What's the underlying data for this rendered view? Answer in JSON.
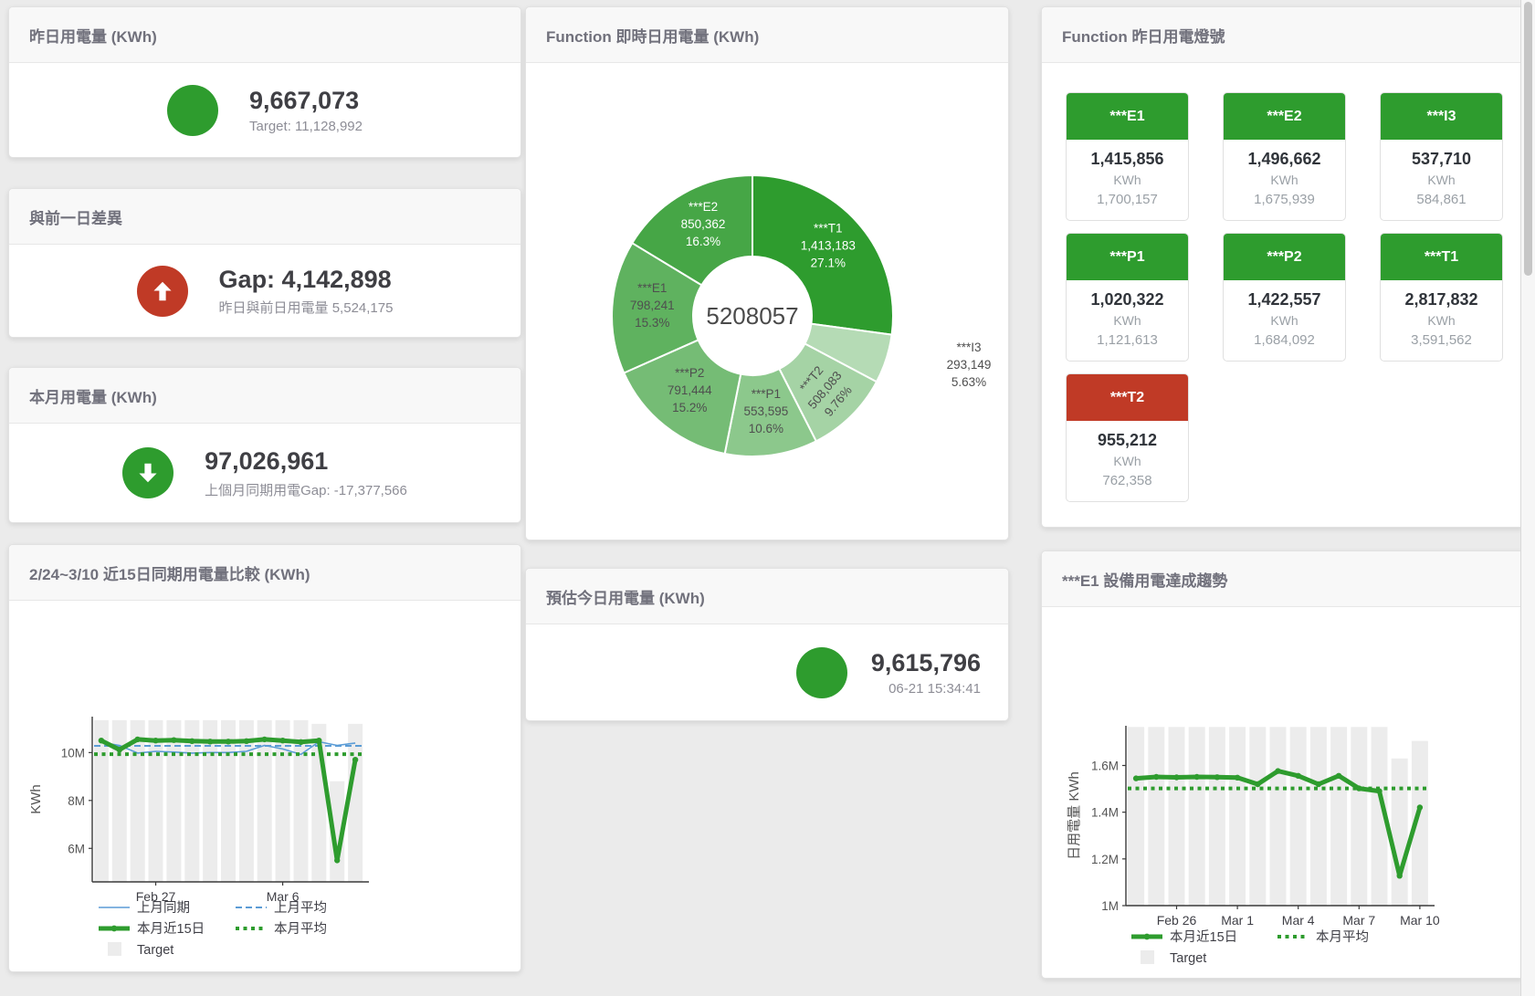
{
  "cards": {
    "yesterday": {
      "title": "昨日用電量 (KWh)",
      "value": "9,667,073",
      "subtitle": "Target: 11,128,992",
      "indicator": "circle",
      "indicator_color": "#2e9c2e"
    },
    "gap": {
      "title": "與前一日差異",
      "value": "Gap: 4,142,898",
      "subtitle": "昨日與前日用電量 5,524,175",
      "indicator": "arrow-up",
      "indicator_color": "#c03a26"
    },
    "month": {
      "title": "本月用電量 (KWh)",
      "value": "97,026,961",
      "subtitle": "上個月同期用電Gap: -17,377,566",
      "indicator": "arrow-down",
      "indicator_color": "#2e9c2e"
    },
    "today_estimate": {
      "title": "預估今日用電量 (KWh)",
      "value": "9,615,796",
      "subtitle": "06-21 15:34:41",
      "indicator": "circle",
      "indicator_color": "#2e9c2e"
    },
    "realtime_donut": {
      "title": "Function 即時日用電量 (KWh)"
    },
    "lights": {
      "title": "Function 昨日用電燈號",
      "unit": "KWh",
      "tiles": [
        {
          "name": "***E1",
          "value": "1,415,856",
          "target": "1,700,157",
          "status_color": "#2e9c2e"
        },
        {
          "name": "***E2",
          "value": "1,496,662",
          "target": "1,675,939",
          "status_color": "#2e9c2e"
        },
        {
          "name": "***I3",
          "value": "537,710",
          "target": "584,861",
          "status_color": "#2e9c2e"
        },
        {
          "name": "***P1",
          "value": "1,020,322",
          "target": "1,121,613",
          "status_color": "#2e9c2e"
        },
        {
          "name": "***P2",
          "value": "1,422,557",
          "target": "1,684,092",
          "status_color": "#2e9c2e"
        },
        {
          "name": "***T1",
          "value": "2,817,832",
          "target": "3,591,562",
          "status_color": "#2e9c2e"
        },
        {
          "name": "***T2",
          "value": "955,212",
          "target": "762,358",
          "status_color": "#c03a26"
        }
      ]
    },
    "compare_chart": {
      "title": "2/24~3/10 近15日同期用電量比較 (KWh)"
    },
    "e1_chart": {
      "title": "***E1 設備用電達成趨勢"
    }
  },
  "chart_data": [
    {
      "type": "pie",
      "title": "Function 即時日用電量 (KWh)",
      "center_total": "5208057",
      "slices": [
        {
          "name": "***T1",
          "value": 1413183,
          "pct_label": "27.1%",
          "color": "#2e9c2e",
          "text": "#ffffff"
        },
        {
          "name": "***I3",
          "value": 293149,
          "pct_label": "5.63%",
          "color": "#b5dbb5",
          "text": "#4f4f4f",
          "label_outside": true
        },
        {
          "name": "***T2",
          "value": 508083,
          "pct_label": "9.76%",
          "color": "#a5d3a5",
          "text": "#4f4f4f",
          "label_rotate": -50
        },
        {
          "name": "***P1",
          "value": 553595,
          "pct_label": "10.6%",
          "color": "#8cc88c",
          "text": "#4f4f4f"
        },
        {
          "name": "***P2",
          "value": 791444,
          "pct_label": "15.2%",
          "color": "#75bc75",
          "text": "#4f4f4f"
        },
        {
          "name": "***E1",
          "value": 798241,
          "pct_label": "15.3%",
          "color": "#5fb25f",
          "text": "#4f4f4f"
        },
        {
          "name": "***E2",
          "value": 850362,
          "pct_label": "16.3%",
          "color": "#46a646",
          "text": "#ffffff"
        }
      ]
    },
    {
      "type": "line",
      "title": "2/24~3/10 近15日同期用電量比較 (KWh)",
      "x_range": "2/24~3/10",
      "n_points": 15,
      "ylabel": "KWh",
      "ylim": [
        4600000,
        11500000
      ],
      "yticks": [
        {
          "v": 6000000,
          "label": "6M"
        },
        {
          "v": 8000000,
          "label": "8M"
        },
        {
          "v": 10000000,
          "label": "10M"
        }
      ],
      "x_labels": [
        {
          "index": 3,
          "label": "Feb 27"
        },
        {
          "index": 10,
          "label": "Mar 6"
        }
      ],
      "target_bars": {
        "name": "Target",
        "color": "#ececec",
        "values": [
          11350000,
          11350000,
          11350000,
          11350000,
          11350000,
          11350000,
          11350000,
          11350000,
          11350000,
          11350000,
          11350000,
          11350000,
          11200000,
          8800000,
          11200000
        ]
      },
      "series": [
        {
          "name": "上月同期",
          "color": "#5b9cd6",
          "width": 1.6,
          "dash": "solid",
          "values": [
            10420000,
            10300000,
            9980000,
            10050000,
            10020000,
            9980000,
            10000000,
            10000000,
            10050000,
            10300000,
            10150000,
            9920000,
            10450000,
            10300000,
            10400000
          ]
        },
        {
          "name": "上月平均",
          "color": "#5b9cd6",
          "width": 2,
          "dash": "dashed",
          "avg": 10280000
        },
        {
          "name": "本月近15日",
          "color": "#2e9c2e",
          "width": 5,
          "dash": "solid",
          "markers": true,
          "values": [
            10500000,
            10120000,
            10550000,
            10500000,
            10520000,
            10480000,
            10460000,
            10460000,
            10480000,
            10550000,
            10500000,
            10440000,
            10500000,
            5500000,
            9700000
          ]
        },
        {
          "name": "本月平均",
          "color": "#2e9c2e",
          "width": 4,
          "dash": "dotted",
          "avg": 9930000
        }
      ],
      "legend_rows": [
        [
          "上月同期",
          "上月平均"
        ],
        [
          "本月近15日",
          "本月平均"
        ],
        [
          "Target"
        ]
      ]
    },
    {
      "type": "line",
      "title": "***E1 設備用電達成趨勢",
      "n_points": 15,
      "ylabel": "日用電量 KWh",
      "ylim": [
        1000000,
        1770000
      ],
      "yticks": [
        {
          "v": 1000000,
          "label": "1M"
        },
        {
          "v": 1200000,
          "label": "1.2M"
        },
        {
          "v": 1400000,
          "label": "1.4M"
        },
        {
          "v": 1600000,
          "label": "1.6M"
        }
      ],
      "x_labels": [
        {
          "index": 2,
          "label": "Feb 26"
        },
        {
          "index": 5,
          "label": "Mar 1"
        },
        {
          "index": 8,
          "label": "Mar 4"
        },
        {
          "index": 11,
          "label": "Mar 7"
        },
        {
          "index": 14,
          "label": "Mar 10"
        }
      ],
      "target_bars": {
        "name": "Target",
        "color": "#ececec",
        "values": [
          1765000,
          1765000,
          1765000,
          1765000,
          1765000,
          1765000,
          1765000,
          1765000,
          1765000,
          1765000,
          1765000,
          1765000,
          1765000,
          1630000,
          1705000
        ]
      },
      "series": [
        {
          "name": "本月近15日",
          "color": "#2e9c2e",
          "width": 5,
          "dash": "solid",
          "markers": true,
          "values": [
            1545000,
            1551000,
            1549000,
            1551000,
            1550000,
            1548000,
            1520000,
            1576000,
            1556000,
            1520000,
            1556000,
            1502000,
            1490000,
            1128000,
            1420000
          ]
        },
        {
          "name": "本月平均",
          "color": "#2e9c2e",
          "width": 4,
          "dash": "dotted",
          "avg": 1502000
        }
      ],
      "legend_rows": [
        [
          "本月近15日",
          "本月平均"
        ],
        [
          "Target"
        ]
      ]
    }
  ]
}
